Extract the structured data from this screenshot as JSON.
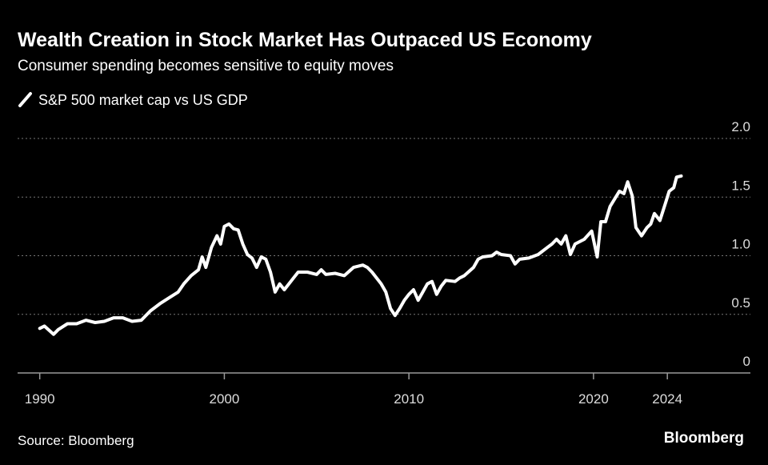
{
  "chart_data": {
    "type": "line",
    "title": "Wealth Creation in Stock Market Has Outpaced US Economy",
    "subtitle": "Consumer spending becomes sensitive to equity moves",
    "source": "Source: Bloomberg",
    "brand": "Bloomberg",
    "x": [
      1990.0,
      1990.25,
      1990.75,
      1991.0,
      1991.5,
      1992.0,
      1992.5,
      1993.0,
      1993.5,
      1994.0,
      1994.5,
      1995.0,
      1995.5,
      1996.0,
      1996.5,
      1997.0,
      1997.5,
      1997.8,
      1998.2,
      1998.6,
      1998.8,
      1999.0,
      1999.3,
      1999.6,
      1999.8,
      2000.0,
      2000.25,
      2000.5,
      2000.75,
      2001.0,
      2001.25,
      2001.5,
      2001.75,
      2002.0,
      2002.25,
      2002.5,
      2002.75,
      2003.0,
      2003.25,
      2003.75,
      2004.0,
      2004.5,
      2005.0,
      2005.25,
      2005.5,
      2006.0,
      2006.5,
      2007.0,
      2007.5,
      2007.75,
      2008.0,
      2008.5,
      2008.75,
      2009.0,
      2009.25,
      2009.5,
      2009.75,
      2010.0,
      2010.25,
      2010.5,
      2010.75,
      2011.0,
      2011.25,
      2011.5,
      2011.75,
      2012.0,
      2012.5,
      2012.75,
      2013.0,
      2013.5,
      2013.75,
      2014.0,
      2014.5,
      2014.75,
      2015.0,
      2015.5,
      2015.75,
      2016.0,
      2016.5,
      2017.0,
      2017.5,
      2017.75,
      2018.0,
      2018.25,
      2018.5,
      2018.75,
      2019.0,
      2019.5,
      2019.9,
      2020.2,
      2020.4,
      2020.65,
      2020.9,
      2021.4,
      2021.65,
      2021.85,
      2022.1,
      2022.3,
      2022.6,
      2022.9,
      2023.1,
      2023.3,
      2023.6,
      2023.9,
      2024.1,
      2024.35,
      2024.5,
      2024.75
    ],
    "series": [
      {
        "name": "S&P 500 market cap vs US GDP",
        "color": "#ffffff",
        "values": [
          0.38,
          0.4,
          0.33,
          0.37,
          0.42,
          0.42,
          0.45,
          0.43,
          0.44,
          0.47,
          0.47,
          0.44,
          0.45,
          0.53,
          0.59,
          0.64,
          0.69,
          0.76,
          0.83,
          0.88,
          0.99,
          0.9,
          1.07,
          1.17,
          1.1,
          1.25,
          1.27,
          1.23,
          1.22,
          1.1,
          1.01,
          0.98,
          0.9,
          0.99,
          0.97,
          0.86,
          0.69,
          0.76,
          0.71,
          0.81,
          0.86,
          0.86,
          0.84,
          0.88,
          0.84,
          0.85,
          0.83,
          0.9,
          0.92,
          0.9,
          0.86,
          0.76,
          0.69,
          0.55,
          0.49,
          0.55,
          0.62,
          0.67,
          0.71,
          0.62,
          0.69,
          0.76,
          0.78,
          0.67,
          0.74,
          0.79,
          0.78,
          0.81,
          0.83,
          0.9,
          0.97,
          0.99,
          1.0,
          1.03,
          1.01,
          1.0,
          0.93,
          0.97,
          0.98,
          1.01,
          1.07,
          1.1,
          1.14,
          1.1,
          1.17,
          1.01,
          1.1,
          1.14,
          1.21,
          0.99,
          1.29,
          1.29,
          1.42,
          1.55,
          1.53,
          1.63,
          1.51,
          1.24,
          1.17,
          1.24,
          1.27,
          1.36,
          1.3,
          1.45,
          1.55,
          1.58,
          1.67,
          1.68
        ]
      }
    ],
    "xlim": [
      1988.8,
      2028.5
    ],
    "xticks": [
      1990,
      2000,
      2010,
      2020,
      2024
    ],
    "ylim": [
      0,
      2.0
    ],
    "yticks": [
      0,
      0.5,
      {
        "value": 1,
        "label": "1.0"
      },
      1.5,
      {
        "value": 2,
        "label": "2.0"
      }
    ],
    "grid": true
  }
}
